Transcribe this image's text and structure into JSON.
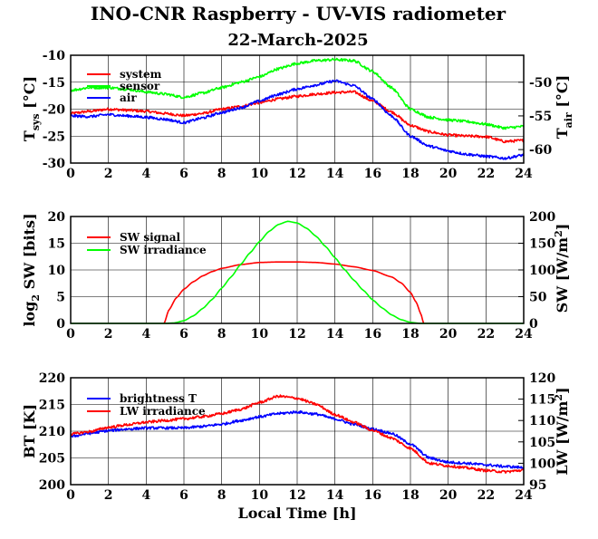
{
  "header": {
    "title": "INO-CNR Raspberry - UV-VIS radiometer",
    "subtitle": "22-March-2025"
  },
  "x_ticks": [
    "0",
    "2",
    "4",
    "6",
    "8",
    "10",
    "12",
    "14",
    "16",
    "18",
    "20",
    "22",
    "24"
  ],
  "xlabel": "Local Time [h]",
  "colors": {
    "red": "#ff0000",
    "green": "#00ff00",
    "blue": "#0000ff",
    "grid": "#000000"
  },
  "chart_data": [
    {
      "type": "line",
      "xlim": [
        0,
        24
      ],
      "ylim": [
        -30,
        -10
      ],
      "y2lim": [
        -62,
        -46
      ],
      "ylabel_main": "T",
      "ylabel_sub": "sys",
      "ylabel_unit": "[°C]",
      "y2label_main": "T",
      "y2label_sub": "air",
      "y2label_unit": "[°C]",
      "yticks": [
        "-30",
        "-25",
        "-20",
        "-15",
        "-10"
      ],
      "y2ticks": [
        "-60",
        "-55",
        "-50"
      ],
      "legend": [
        "system",
        "sensor",
        "air"
      ],
      "series": [
        {
          "name": "system",
          "color": "#ff0000",
          "axis": "left",
          "x": [
            0,
            1,
            2,
            3,
            4,
            5,
            6,
            7,
            8,
            9,
            10,
            11,
            12,
            13,
            14,
            15,
            16,
            17,
            18,
            19,
            20,
            21,
            22,
            23,
            24
          ],
          "y": [
            -20.8,
            -20.4,
            -20.0,
            -20.2,
            -20.4,
            -20.8,
            -21.2,
            -20.8,
            -20.0,
            -19.5,
            -18.8,
            -18.1,
            -17.6,
            -17.2,
            -16.9,
            -16.8,
            -18.5,
            -20.5,
            -23.0,
            -24.2,
            -24.8,
            -25.0,
            -25.1,
            -26.0,
            -25.8
          ]
        },
        {
          "name": "sensor",
          "color": "#00ff00",
          "axis": "left",
          "x": [
            0,
            1,
            2,
            3,
            4,
            5,
            6,
            7,
            8,
            9,
            10,
            11,
            12,
            13,
            14,
            15,
            16,
            17,
            18,
            19,
            20,
            21,
            22,
            23,
            24
          ],
          "y": [
            -16.5,
            -16.0,
            -16.0,
            -16.3,
            -16.8,
            -17.2,
            -17.8,
            -17.0,
            -16.0,
            -15.0,
            -14.0,
            -12.5,
            -11.5,
            -11.0,
            -10.8,
            -11.0,
            -13.0,
            -16.0,
            -20.0,
            -21.5,
            -22.0,
            -22.3,
            -22.8,
            -23.5,
            -23.2
          ]
        },
        {
          "name": "air",
          "color": "#0000ff",
          "axis": "right",
          "x": [
            0,
            1,
            2,
            3,
            4,
            5,
            6,
            7,
            8,
            9,
            10,
            11,
            12,
            13,
            14,
            15,
            16,
            17,
            18,
            19,
            20,
            21,
            22,
            23,
            24
          ],
          "y": [
            -55.0,
            -55.1,
            -54.8,
            -55.0,
            -55.2,
            -55.5,
            -56.0,
            -55.3,
            -54.5,
            -53.8,
            -52.8,
            -51.8,
            -51.0,
            -50.4,
            -49.8,
            -50.5,
            -52.5,
            -55.0,
            -58.0,
            -59.5,
            -60.2,
            -60.7,
            -61.0,
            -61.3,
            -60.8
          ]
        }
      ]
    },
    {
      "type": "line",
      "xlim": [
        0,
        24
      ],
      "ylim": [
        0,
        20
      ],
      "y2lim": [
        0,
        200
      ],
      "ylabel_main": "log",
      "ylabel_sub": "2",
      "ylabel_unit": "SW [bits]",
      "y2label_unit_pre": "SW [W/m",
      "y2label_sup": "2",
      "y2label_unit_post": "]",
      "yticks": [
        "0",
        "5",
        "10",
        "15",
        "20"
      ],
      "y2ticks": [
        "0",
        "50",
        "100",
        "150",
        "200"
      ],
      "legend": [
        "SW signal",
        "SW irradiance"
      ],
      "series": [
        {
          "name": "SW signal",
          "color": "#ff0000",
          "axis": "left",
          "x": [
            4.95,
            5.2,
            5.6,
            6.0,
            6.5,
            7.0,
            7.5,
            8.0,
            9.0,
            10.0,
            11.0,
            12.0,
            13.0,
            14.0,
            15.0,
            16.0,
            17.0,
            17.5,
            18.0,
            18.3,
            18.55,
            18.7
          ],
          "y": [
            0,
            2.5,
            4.8,
            6.4,
            7.8,
            8.9,
            9.7,
            10.3,
            11.0,
            11.4,
            11.5,
            11.5,
            11.4,
            11.1,
            10.6,
            9.9,
            8.7,
            7.6,
            5.8,
            4.0,
            1.8,
            0
          ]
        },
        {
          "name": "SW irradiance",
          "color": "#00ff00",
          "axis": "right",
          "x": [
            0,
            5.0,
            5.5,
            6.0,
            6.5,
            7.0,
            7.5,
            8.0,
            8.5,
            9.0,
            9.5,
            10.0,
            10.5,
            11.0,
            11.5,
            12.0,
            12.5,
            13.0,
            13.5,
            14.0,
            14.5,
            15.0,
            15.5,
            16.0,
            16.5,
            17.0,
            17.5,
            18.0,
            18.5,
            19.0,
            24
          ],
          "y": [
            0,
            0,
            1,
            5,
            14,
            28,
            45,
            66,
            87,
            110,
            132,
            153,
            172,
            185,
            191,
            188,
            178,
            163,
            144,
            123,
            101,
            81,
            62,
            44,
            29,
            16,
            7,
            2,
            0,
            0,
            0
          ]
        }
      ]
    },
    {
      "type": "line",
      "xlim": [
        0,
        24
      ],
      "ylim": [
        200,
        220
      ],
      "y2lim": [
        95,
        120
      ],
      "ylabel_unit": "BT [K]",
      "y2label_unit_pre": "LW [W/m",
      "y2label_sup": "2",
      "y2label_unit_post": "]",
      "yticks": [
        "200",
        "205",
        "210",
        "215",
        "220"
      ],
      "y2ticks": [
        "95",
        "100",
        "105",
        "110",
        "115",
        "120"
      ],
      "legend": [
        "brightness T",
        "LW irradiance"
      ],
      "series": [
        {
          "name": "brightness T",
          "color": "#0000ff",
          "axis": "left",
          "x": [
            0,
            1,
            2,
            3,
            4,
            5,
            6,
            7,
            8,
            9,
            10,
            11,
            12,
            13,
            14,
            15,
            16,
            17,
            18,
            19,
            20,
            21,
            22,
            23,
            24
          ],
          "y": [
            209.0,
            209.6,
            210.1,
            210.4,
            210.6,
            210.6,
            210.6,
            210.9,
            211.3,
            212.0,
            212.7,
            213.3,
            213.6,
            213.2,
            212.3,
            211.3,
            210.4,
            209.6,
            207.6,
            205.0,
            204.2,
            204.0,
            203.7,
            203.4,
            203.2
          ]
        },
        {
          "name": "LW irradiance",
          "color": "#ff0000",
          "axis": "right",
          "x": [
            0,
            1,
            2,
            3,
            4,
            5,
            6,
            7,
            8,
            9,
            10,
            11,
            12,
            13,
            14,
            15,
            16,
            17,
            18,
            19,
            20,
            21,
            22,
            23,
            24
          ],
          "y": [
            106.8,
            107.4,
            108.4,
            109.0,
            109.6,
            110.0,
            110.4,
            110.9,
            111.6,
            112.6,
            114.2,
            115.7,
            115.2,
            113.8,
            111.4,
            109.6,
            107.7,
            105.9,
            103.5,
            100.0,
            99.4,
            98.9,
            98.3,
            98.0,
            98.4
          ]
        }
      ]
    }
  ]
}
